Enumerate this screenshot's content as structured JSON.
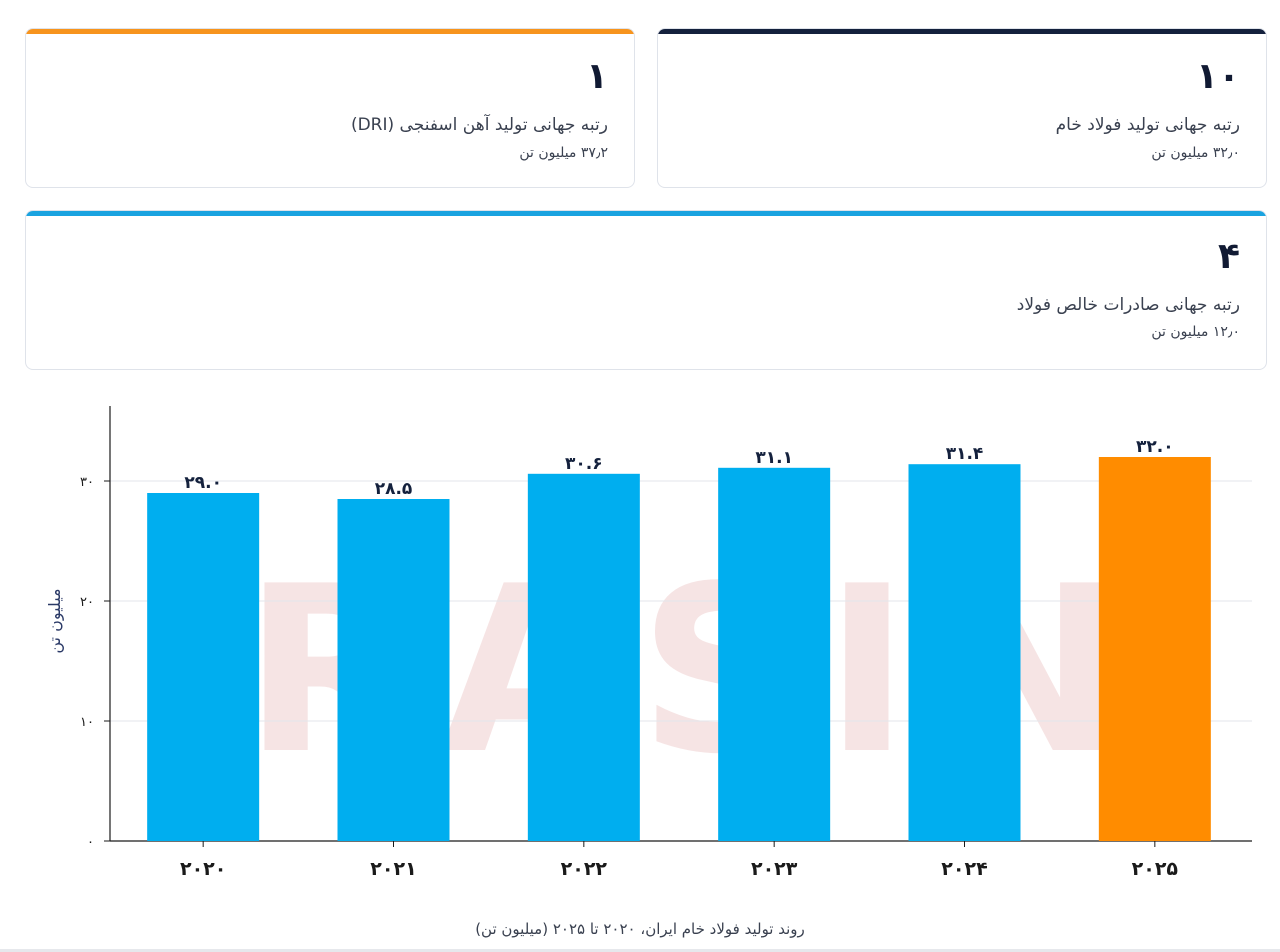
{
  "cards": {
    "dri": {
      "rank": "۱",
      "label": "رتبه جهانی تولید آهن اسفنجی (DRI)",
      "sub": "۳۷٫۲ میلیون تن",
      "accent": "#f7941d"
    },
    "crude": {
      "rank": "۱۰",
      "label": "رتبه جهانی تولید فولاد خام",
      "sub": "۳۲٫۰ میلیون تن",
      "accent": "#14213d"
    },
    "export": {
      "rank": "۴",
      "label": "رتبه جهانی صادرات خالص فولاد",
      "sub": "۱۲٫۰ میلیون تن",
      "accent": "#1aa3e0"
    }
  },
  "chart_data": {
    "type": "bar",
    "categories": [
      "۲۰۲۰",
      "۲۰۲۱",
      "۲۰۲۲",
      "۲۰۲۳",
      "۲۰۲۴",
      "۲۰۲۵"
    ],
    "values": [
      29.0,
      28.5,
      30.6,
      31.1,
      31.4,
      32.0
    ],
    "value_labels": [
      "۲۹.۰",
      "۲۸.۵",
      "۳۰.۶",
      "۳۱.۱",
      "۳۱.۴",
      "۳۲.۰"
    ],
    "bar_colors": [
      "#00aeef",
      "#00aeef",
      "#00aeef",
      "#00aeef",
      "#00aeef",
      "#ff8c00"
    ],
    "ylabel": "میلیون تن",
    "ylim": [
      0,
      36
    ],
    "yticks": [
      0,
      10,
      20,
      30
    ],
    "ytick_labels": [
      "۰",
      "۱۰",
      "۲۰",
      "۳۰"
    ],
    "grid": true,
    "caption": "روند تولید فولاد خام ایران، ۲۰۲۰ تا ۲۰۲۵ (میلیون تن)"
  },
  "watermark": {
    "text": "IRASIN",
    "color": "#e8b4b4"
  }
}
